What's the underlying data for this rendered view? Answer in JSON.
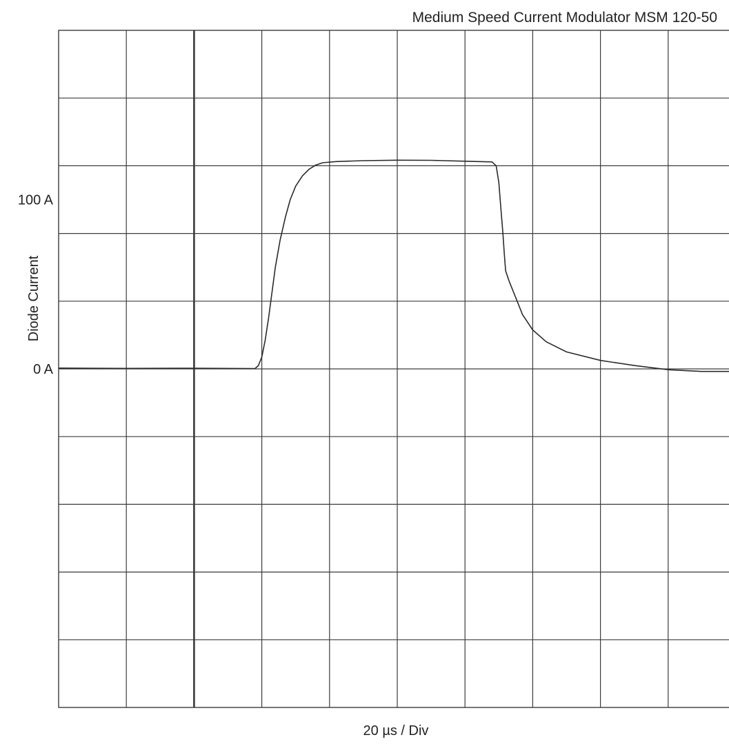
{
  "chart_data": {
    "type": "line",
    "title": "Medium Speed Current Modulator MSM 120-50",
    "xlabel": "20 µs / Div",
    "ylabel": "Diode Current",
    "y_tick_labels": [
      {
        "value": 100,
        "label": "100 A"
      },
      {
        "value": 0,
        "label": "0 A"
      }
    ],
    "x_unit": "div",
    "x_range": [
      0,
      9.9
    ],
    "y_range": [
      -200,
      200
    ],
    "x_divisions": 10,
    "y_divisions": 10,
    "grid": true,
    "trigger_division": 2,
    "series": [
      {
        "values": [
          [
            0.0,
            0.5
          ],
          [
            1.0,
            0.3
          ],
          [
            2.0,
            0.4
          ],
          [
            2.9,
            0.2
          ],
          [
            2.95,
            2
          ],
          [
            3.0,
            7
          ],
          [
            3.05,
            17
          ],
          [
            3.1,
            30
          ],
          [
            3.15,
            45
          ],
          [
            3.2,
            60
          ],
          [
            3.27,
            76
          ],
          [
            3.35,
            90
          ],
          [
            3.42,
            100
          ],
          [
            3.5,
            108
          ],
          [
            3.6,
            114
          ],
          [
            3.7,
            118
          ],
          [
            3.8,
            120.5
          ],
          [
            3.9,
            121.8
          ],
          [
            4.1,
            122.5
          ],
          [
            4.5,
            123
          ],
          [
            5.0,
            123.3
          ],
          [
            5.5,
            123.2
          ],
          [
            6.0,
            122.7
          ],
          [
            6.4,
            122.3
          ],
          [
            6.46,
            120
          ],
          [
            6.5,
            110
          ],
          [
            6.53,
            95
          ],
          [
            6.56,
            80
          ],
          [
            6.58,
            68
          ],
          [
            6.6,
            58
          ],
          [
            6.65,
            52
          ],
          [
            6.75,
            42
          ],
          [
            6.85,
            32
          ],
          [
            7.0,
            23
          ],
          [
            7.2,
            16
          ],
          [
            7.5,
            10
          ],
          [
            8.0,
            5
          ],
          [
            8.5,
            2
          ],
          [
            9.0,
            -0.5
          ],
          [
            9.5,
            -1.5
          ],
          [
            9.9,
            -1.5
          ]
        ]
      }
    ]
  }
}
